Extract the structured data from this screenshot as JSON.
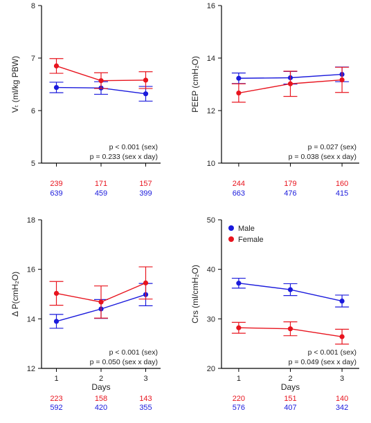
{
  "colors": {
    "male": "#1a1adc",
    "female": "#e8141e",
    "axis": "#000000"
  },
  "legend": {
    "items": [
      {
        "label": "Male",
        "color": "#1a1adc"
      },
      {
        "label": "Female",
        "color": "#e8141e"
      }
    ],
    "placement": "top-left"
  },
  "chart_data": [
    {
      "type": "line",
      "panel": "top-left",
      "ylabel": "Vₜ (ml/kg PBW)",
      "xlabel": "",
      "x": [
        1,
        2,
        3
      ],
      "xticks": [
        "",
        "",
        ""
      ],
      "ylim": [
        5,
        8
      ],
      "yticks": [
        5,
        6,
        7,
        8
      ],
      "series": [
        {
          "name": "Male",
          "values": [
            6.44,
            6.43,
            6.32
          ],
          "err": [
            0.1,
            0.12,
            0.14
          ]
        },
        {
          "name": "Female",
          "values": [
            6.85,
            6.57,
            6.58
          ],
          "err": [
            0.14,
            0.15,
            0.16
          ]
        }
      ],
      "annotations": [
        "p < 0.001 (sex)",
        "p = 0.233 (sex x day)"
      ],
      "counts": {
        "female": [
          "239",
          "171",
          "157"
        ],
        "male": [
          "639",
          "459",
          "399"
        ]
      }
    },
    {
      "type": "line",
      "panel": "top-right",
      "ylabel": "PEEP (cmH₂O)",
      "xlabel": "",
      "x": [
        1,
        2,
        3
      ],
      "xticks": [
        "",
        "",
        ""
      ],
      "ylim": [
        10,
        16
      ],
      "yticks": [
        10,
        12,
        14,
        16
      ],
      "series": [
        {
          "name": "Male",
          "values": [
            13.23,
            13.25,
            13.38
          ],
          "err": [
            0.2,
            0.24,
            0.28
          ]
        },
        {
          "name": "Female",
          "values": [
            12.67,
            13.02,
            13.17
          ],
          "err": [
            0.35,
            0.48,
            0.48
          ]
        }
      ],
      "annotations": [
        "p = 0.027 (sex)",
        "p = 0.038 (sex x day)"
      ],
      "counts": {
        "female": [
          "244",
          "179",
          "160"
        ],
        "male": [
          "663",
          "476",
          "415"
        ]
      }
    },
    {
      "type": "line",
      "panel": "bottom-left",
      "ylabel": "Δ P(cmH₂O)",
      "xlabel": "Days",
      "x": [
        1,
        2,
        3
      ],
      "xticks": [
        "1",
        "2",
        "3"
      ],
      "ylim": [
        12,
        18
      ],
      "yticks": [
        12,
        14,
        16,
        18
      ],
      "series": [
        {
          "name": "Male",
          "values": [
            13.9,
            14.4,
            14.98
          ],
          "err": [
            0.28,
            0.38,
            0.45
          ]
        },
        {
          "name": "Female",
          "values": [
            15.03,
            14.68,
            15.45
          ],
          "err": [
            0.48,
            0.65,
            0.65
          ]
        }
      ],
      "annotations": [
        "p < 0.001 (sex)",
        "p = 0.050 (sex x day)"
      ],
      "counts": {
        "female": [
          "223",
          "158",
          "143"
        ],
        "male": [
          "592",
          "420",
          "355"
        ]
      }
    },
    {
      "type": "line",
      "panel": "bottom-right",
      "ylabel": "Crs (ml/cmH₂O)",
      "xlabel": "Days",
      "x": [
        1,
        2,
        3
      ],
      "xticks": [
        "1",
        "2",
        "3"
      ],
      "ylim": [
        20,
        50
      ],
      "yticks": [
        20,
        30,
        40,
        50
      ],
      "series": [
        {
          "name": "Male",
          "values": [
            37.2,
            35.9,
            33.6
          ],
          "err": [
            1.0,
            1.2,
            1.2
          ]
        },
        {
          "name": "Female",
          "values": [
            28.2,
            28.0,
            26.4
          ],
          "err": [
            1.1,
            1.4,
            1.5
          ]
        }
      ],
      "annotations": [
        "p < 0.001 (sex)",
        "p = 0.049 (sex x day)"
      ],
      "counts": {
        "female": [
          "220",
          "151",
          "140"
        ],
        "male": [
          "576",
          "407",
          "342"
        ]
      },
      "show_legend": true
    }
  ]
}
